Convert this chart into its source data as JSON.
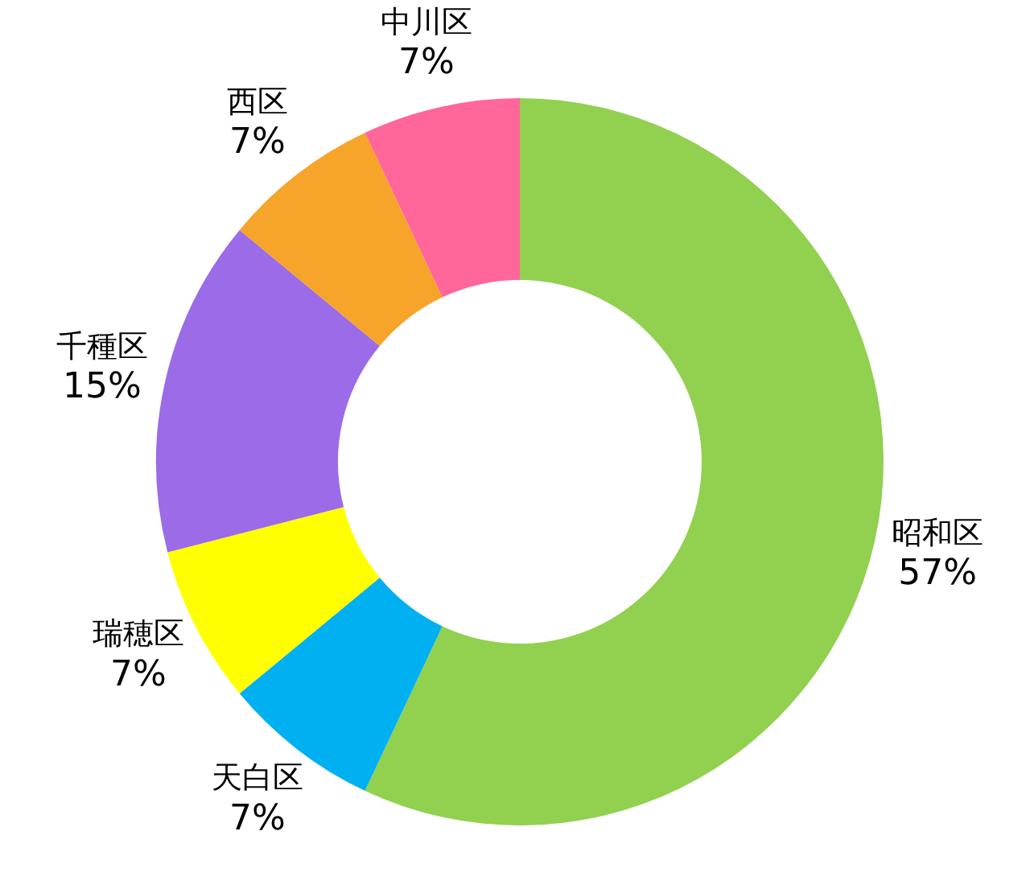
{
  "chart_data": {
    "type": "donut",
    "categories": [
      "昭和区",
      "天白区",
      "瑞穂区",
      "千種区",
      "西区",
      "中川区"
    ],
    "values": [
      57,
      7,
      7,
      15,
      7,
      7
    ],
    "value_labels": [
      "57%",
      "7%",
      "7%",
      "15%",
      "7%",
      "7%"
    ],
    "colors": [
      "#92d050",
      "#00b0f0",
      "#ffff00",
      "#9b6be8",
      "#f6a42a",
      "#ff6699"
    ],
    "legend": false
  }
}
